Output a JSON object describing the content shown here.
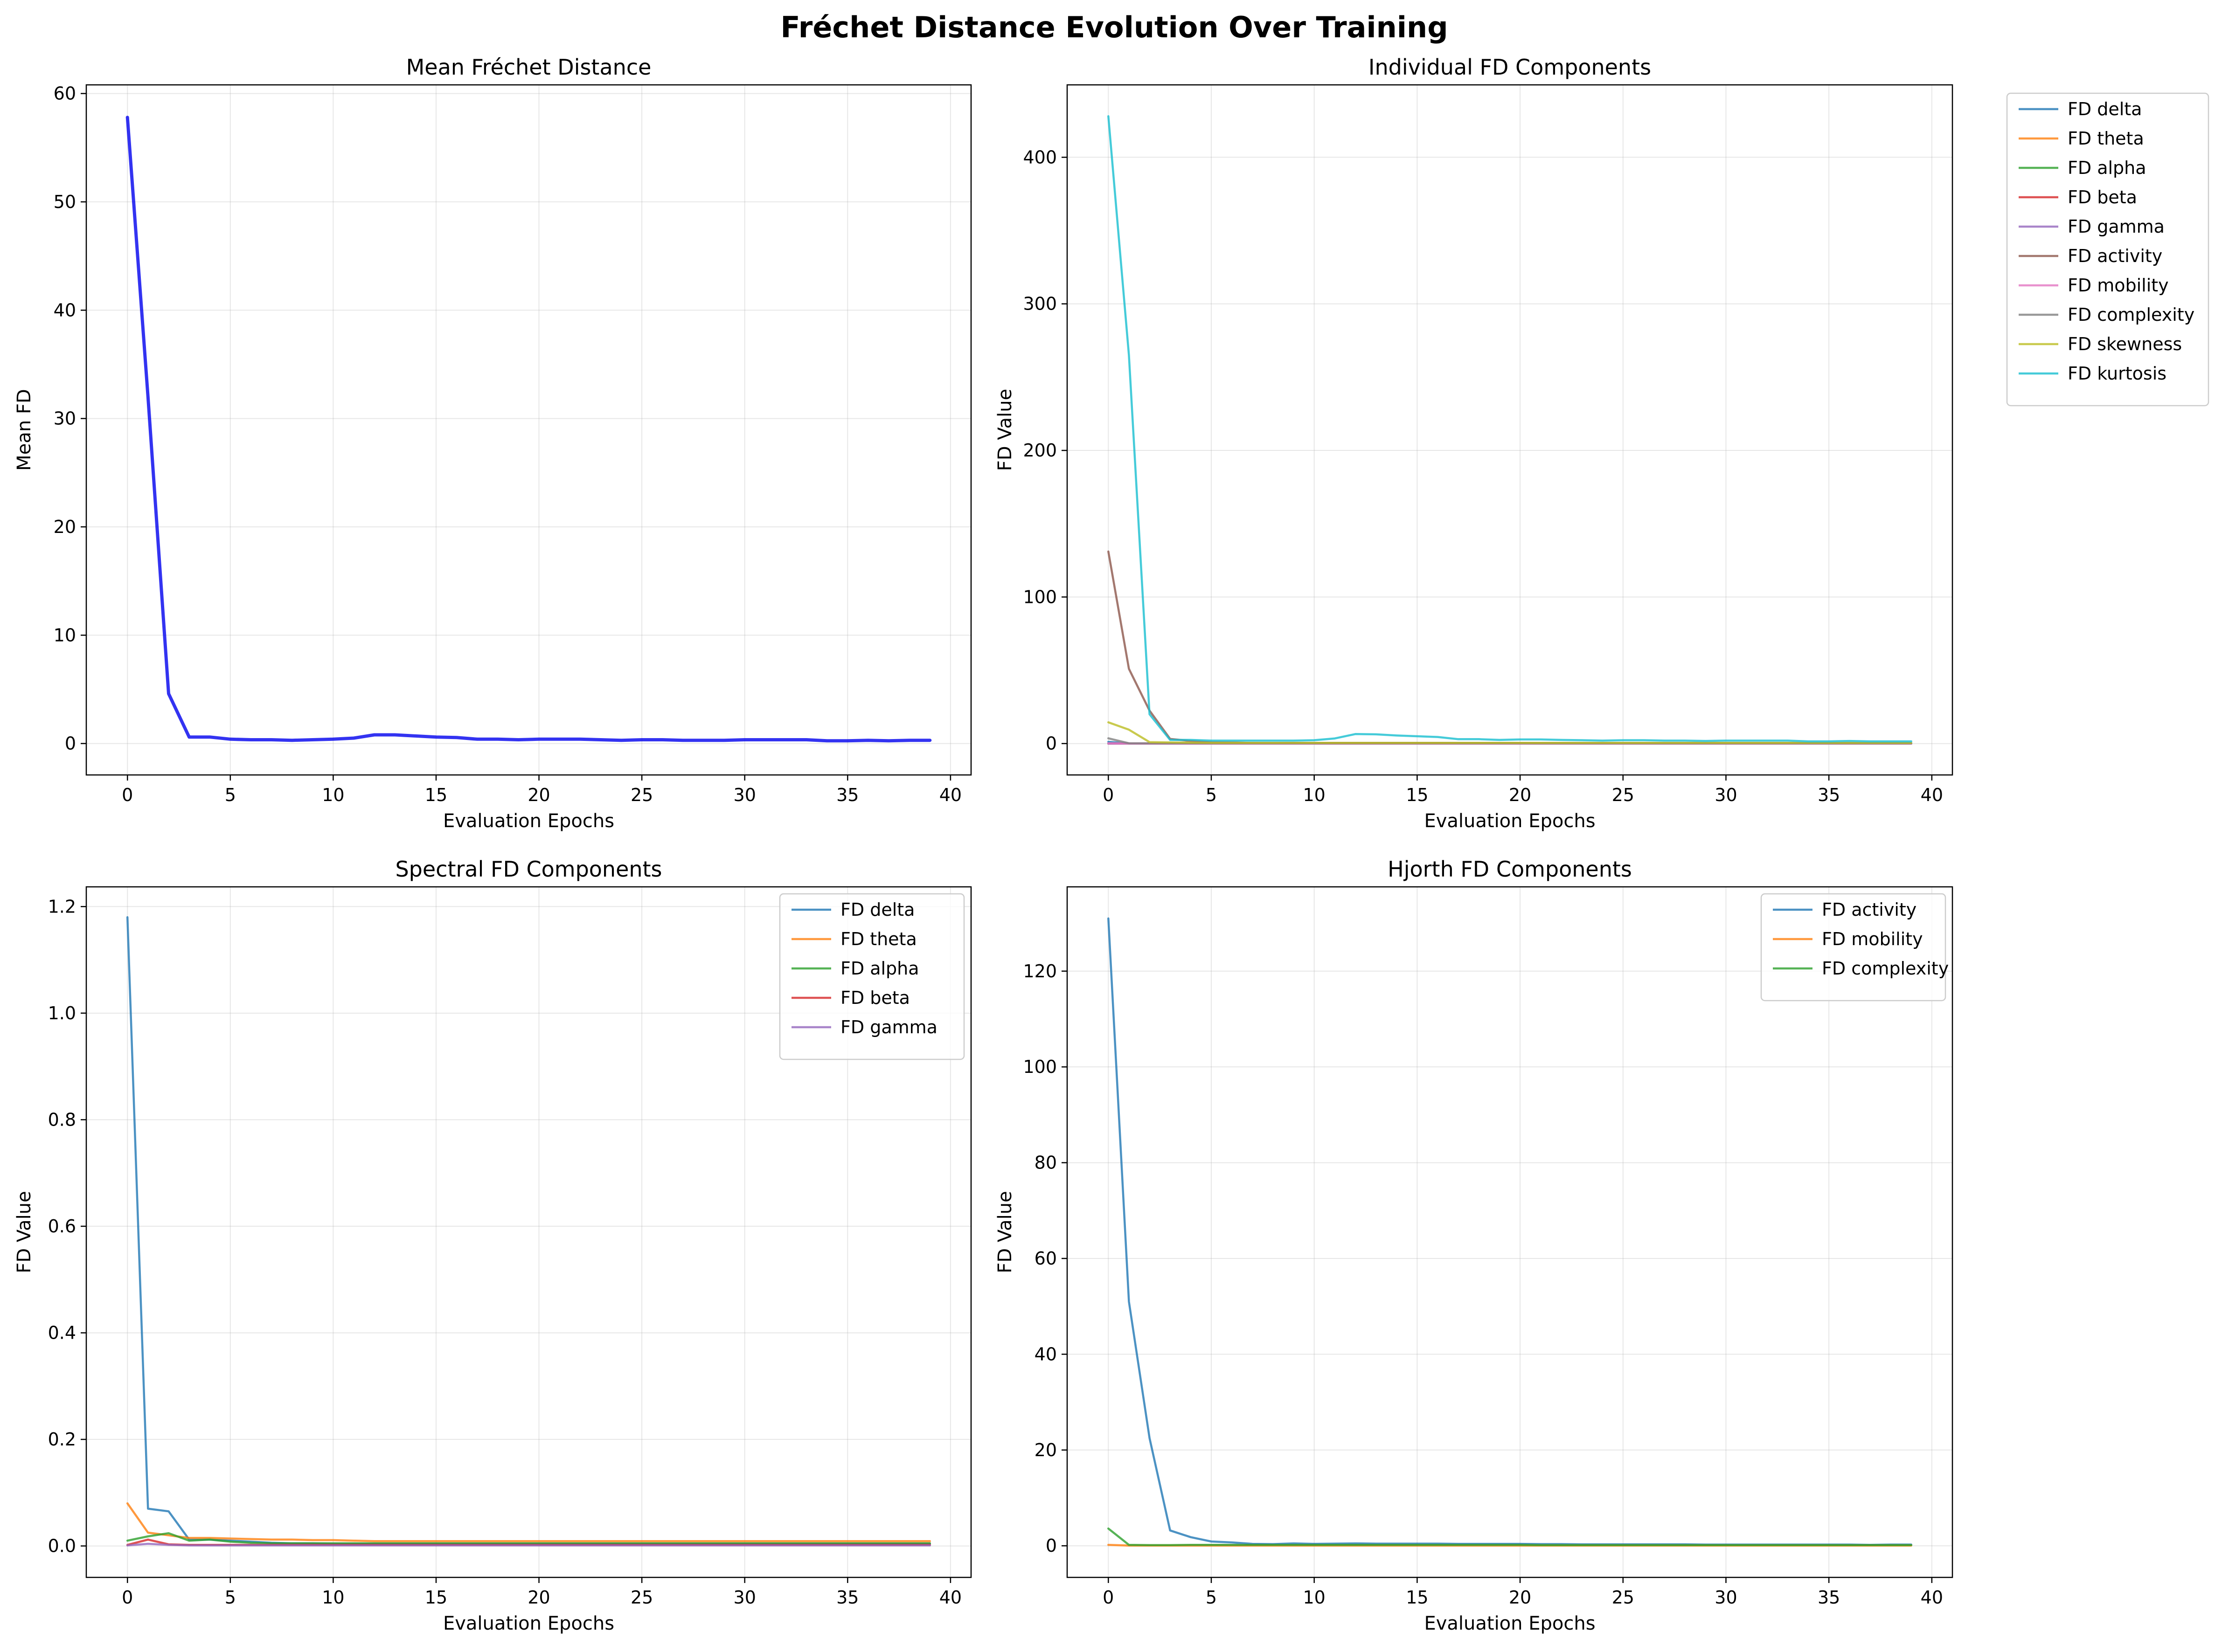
{
  "figure": {
    "title": "Fréchet Distance Evolution Over Training"
  },
  "chart_data": [
    {
      "type": "line",
      "title": "Mean Fréchet Distance",
      "xlabel": "Evaluation Epochs",
      "ylabel": "Mean FD",
      "xlim": [
        -2,
        41
      ],
      "ylim": [
        -2.9,
        60.8
      ],
      "xticks": [
        0,
        5,
        10,
        15,
        20,
        25,
        30,
        35,
        40
      ],
      "yticks": [
        0,
        10,
        20,
        30,
        40,
        50,
        60
      ],
      "grid": true,
      "legend": "none",
      "series": [
        {
          "color": "#0000ee",
          "width": 7,
          "opacity": 0.8,
          "values": [
            57.8,
            32.0,
            4.6,
            0.6,
            0.6,
            0.4,
            0.35,
            0.35,
            0.3,
            0.35,
            0.4,
            0.5,
            0.8,
            0.8,
            0.7,
            0.6,
            0.55,
            0.4,
            0.4,
            0.35,
            0.4,
            0.4,
            0.4,
            0.35,
            0.3,
            0.35,
            0.35,
            0.3,
            0.3,
            0.3,
            0.35,
            0.35,
            0.35,
            0.35,
            0.25,
            0.25,
            0.3,
            0.25,
            0.3,
            0.3
          ]
        }
      ]
    },
    {
      "type": "line",
      "title": "Individual FD Components",
      "xlabel": "Evaluation Epochs",
      "ylabel": "FD Value",
      "xlim": [
        -2,
        41
      ],
      "ylim": [
        -21.4,
        449.4
      ],
      "xticks": [
        0,
        5,
        10,
        15,
        20,
        25,
        30,
        35,
        40
      ],
      "yticks": [
        0,
        100,
        200,
        300,
        400
      ],
      "grid": true,
      "legend": "outside-upper-right",
      "series": [
        {
          "name": "FD delta",
          "color": "#1f77b4",
          "width": 4.5,
          "opacity": 0.8,
          "values": [
            1.18,
            0.07,
            0.065,
            0.012,
            0.012,
            0.01,
            0.008,
            0.006,
            0.005,
            0.005,
            0.004,
            0.004,
            0.004,
            0.004,
            0.004,
            0.004,
            0.004,
            0.004,
            0.004,
            0.004,
            0.004,
            0.004,
            0.004,
            0.004,
            0.004,
            0.004,
            0.004,
            0.004,
            0.004,
            0.004,
            0.004,
            0.004,
            0.004,
            0.004,
            0.004,
            0.004,
            0.004,
            0.004,
            0.004,
            0.004
          ]
        },
        {
          "name": "FD theta",
          "color": "#ff7f0e",
          "width": 4.5,
          "opacity": 0.8,
          "values": [
            0.08,
            0.025,
            0.02,
            0.015,
            0.015,
            0.014,
            0.013,
            0.012,
            0.012,
            0.011,
            0.011,
            0.01,
            0.009,
            0.009,
            0.009,
            0.009,
            0.009,
            0.009,
            0.009,
            0.009,
            0.009,
            0.009,
            0.009,
            0.009,
            0.009,
            0.009,
            0.009,
            0.009,
            0.009,
            0.009,
            0.009,
            0.009,
            0.009,
            0.009,
            0.009,
            0.009,
            0.009,
            0.009,
            0.009,
            0.009
          ]
        },
        {
          "name": "FD alpha",
          "color": "#2ca02c",
          "width": 4.5,
          "opacity": 0.8,
          "values": [
            0.01,
            0.018,
            0.024,
            0.01,
            0.012,
            0.008,
            0.006,
            0.005,
            0.005,
            0.005,
            0.005,
            0.005,
            0.005,
            0.005,
            0.005,
            0.005,
            0.005,
            0.005,
            0.005,
            0.005,
            0.005,
            0.005,
            0.005,
            0.005,
            0.005,
            0.005,
            0.005,
            0.005,
            0.005,
            0.005,
            0.005,
            0.005,
            0.005,
            0.005,
            0.005,
            0.005,
            0.005,
            0.005,
            0.005,
            0.005
          ]
        },
        {
          "name": "FD beta",
          "color": "#d62728",
          "width": 4.5,
          "opacity": 0.8,
          "values": [
            0.002,
            0.012,
            0.003,
            0.002,
            0.002,
            0.002,
            0.002,
            0.002,
            0.002,
            0.002,
            0.002,
            0.002,
            0.002,
            0.002,
            0.002,
            0.002,
            0.002,
            0.002,
            0.002,
            0.002,
            0.002,
            0.002,
            0.002,
            0.002,
            0.002,
            0.002,
            0.002,
            0.002,
            0.002,
            0.002,
            0.002,
            0.002,
            0.002,
            0.002,
            0.002,
            0.002,
            0.002,
            0.002,
            0.002,
            0.002
          ]
        },
        {
          "name": "FD gamma",
          "color": "#9467bd",
          "width": 4.5,
          "opacity": 0.8,
          "values": [
            0.001,
            0.004,
            0.002,
            0.001,
            0.001,
            0.001,
            0.001,
            0.001,
            0.001,
            0.001,
            0.001,
            0.001,
            0.001,
            0.001,
            0.001,
            0.001,
            0.001,
            0.001,
            0.001,
            0.001,
            0.001,
            0.001,
            0.001,
            0.001,
            0.001,
            0.001,
            0.001,
            0.001,
            0.001,
            0.001,
            0.001,
            0.001,
            0.001,
            0.001,
            0.001,
            0.001,
            0.001,
            0.001,
            0.001,
            0.001
          ]
        },
        {
          "name": "FD activity",
          "color": "#8c564b",
          "width": 4.5,
          "opacity": 0.8,
          "values": [
            131,
            51,
            22.5,
            3.2,
            1.8,
            0.9,
            0.7,
            0.4,
            0.35,
            0.5,
            0.4,
            0.45,
            0.5,
            0.45,
            0.45,
            0.45,
            0.45,
            0.4,
            0.4,
            0.4,
            0.4,
            0.35,
            0.35,
            0.3,
            0.3,
            0.3,
            0.3,
            0.3,
            0.3,
            0.25,
            0.25,
            0.25,
            0.25,
            0.25,
            0.25,
            0.25,
            0.25,
            0.2,
            0.25,
            0.25
          ]
        },
        {
          "name": "FD mobility",
          "color": "#e377c2",
          "width": 4.5,
          "opacity": 0.8,
          "values": [
            0.2,
            0.05,
            0.05,
            0.05,
            0.05,
            0.05,
            0.05,
            0.05,
            0.05,
            0.05,
            0.05,
            0.05,
            0.05,
            0.05,
            0.05,
            0.05,
            0.05,
            0.05,
            0.05,
            0.05,
            0.05,
            0.05,
            0.05,
            0.05,
            0.05,
            0.05,
            0.05,
            0.05,
            0.05,
            0.05,
            0.05,
            0.05,
            0.05,
            0.05,
            0.05,
            0.05,
            0.05,
            0.05,
            0.05,
            0.05
          ]
        },
        {
          "name": "FD complexity",
          "color": "#7f7f7f",
          "width": 4.5,
          "opacity": 0.8,
          "values": [
            3.6,
            0.2,
            0.15,
            0.15,
            0.2,
            0.2,
            0.2,
            0.2,
            0.2,
            0.2,
            0.2,
            0.2,
            0.2,
            0.2,
            0.2,
            0.2,
            0.2,
            0.2,
            0.2,
            0.2,
            0.2,
            0.15,
            0.15,
            0.15,
            0.15,
            0.15,
            0.15,
            0.15,
            0.15,
            0.15,
            0.15,
            0.15,
            0.15,
            0.15,
            0.15,
            0.15,
            0.15,
            0.15,
            0.15,
            0.15
          ]
        },
        {
          "name": "FD skewness",
          "color": "#bcbd22",
          "width": 4.5,
          "opacity": 0.8,
          "values": [
            14.5,
            9.5,
            1.0,
            0.8,
            0.6,
            0.5,
            0.5,
            0.5,
            0.5,
            0.5,
            0.5,
            0.5,
            0.5,
            0.5,
            0.5,
            0.5,
            0.5,
            0.5,
            0.5,
            0.5,
            0.5,
            0.5,
            0.5,
            0.5,
            0.5,
            0.5,
            0.5,
            0.5,
            0.5,
            0.5,
            0.5,
            0.5,
            0.5,
            0.5,
            0.5,
            0.5,
            0.5,
            0.5,
            0.5,
            0.5
          ]
        },
        {
          "name": "FD kurtosis",
          "color": "#17becf",
          "width": 4.5,
          "opacity": 0.8,
          "values": [
            428,
            265,
            20,
            2.5,
            2.5,
            2.0,
            2.0,
            2.0,
            2.0,
            2.0,
            2.3,
            3.5,
            6.5,
            6.3,
            5.5,
            5.0,
            4.5,
            3.0,
            3.0,
            2.5,
            2.8,
            2.8,
            2.5,
            2.3,
            2.0,
            2.3,
            2.3,
            2.0,
            2.0,
            1.8,
            2.0,
            2.0,
            2.0,
            2.0,
            1.5,
            1.5,
            1.8,
            1.5,
            1.5,
            1.5
          ]
        }
      ]
    },
    {
      "type": "line",
      "title": "Spectral FD Components",
      "xlabel": "Evaluation Epochs",
      "ylabel": "FD Value",
      "xlim": [
        -2,
        41
      ],
      "ylim": [
        -0.059,
        1.237
      ],
      "xticks": [
        0,
        5,
        10,
        15,
        20,
        25,
        30,
        35,
        40
      ],
      "yticks": [
        0.0,
        0.2,
        0.4,
        0.6,
        0.8,
        1.0,
        1.2
      ],
      "ytick_decimals": 1,
      "grid": true,
      "legend": "upper-right",
      "series": [
        {
          "name": "FD delta",
          "color": "#1f77b4",
          "width": 4.5,
          "opacity": 0.8,
          "values": [
            1.18,
            0.07,
            0.065,
            0.012,
            0.012,
            0.01,
            0.008,
            0.006,
            0.005,
            0.005,
            0.004,
            0.004,
            0.004,
            0.004,
            0.004,
            0.004,
            0.004,
            0.004,
            0.004,
            0.004,
            0.004,
            0.004,
            0.004,
            0.004,
            0.004,
            0.004,
            0.004,
            0.004,
            0.004,
            0.004,
            0.004,
            0.004,
            0.004,
            0.004,
            0.004,
            0.004,
            0.004,
            0.004,
            0.004,
            0.004
          ]
        },
        {
          "name": "FD theta",
          "color": "#ff7f0e",
          "width": 4.5,
          "opacity": 0.8,
          "values": [
            0.08,
            0.025,
            0.02,
            0.015,
            0.015,
            0.014,
            0.013,
            0.012,
            0.012,
            0.011,
            0.011,
            0.01,
            0.009,
            0.009,
            0.009,
            0.009,
            0.009,
            0.009,
            0.009,
            0.009,
            0.009,
            0.009,
            0.009,
            0.009,
            0.009,
            0.009,
            0.009,
            0.009,
            0.009,
            0.009,
            0.009,
            0.009,
            0.009,
            0.009,
            0.009,
            0.009,
            0.009,
            0.009,
            0.009,
            0.009
          ]
        },
        {
          "name": "FD alpha",
          "color": "#2ca02c",
          "width": 4.5,
          "opacity": 0.8,
          "values": [
            0.01,
            0.018,
            0.024,
            0.01,
            0.012,
            0.008,
            0.006,
            0.005,
            0.005,
            0.005,
            0.005,
            0.005,
            0.005,
            0.005,
            0.005,
            0.005,
            0.005,
            0.005,
            0.005,
            0.005,
            0.005,
            0.005,
            0.005,
            0.005,
            0.005,
            0.005,
            0.005,
            0.005,
            0.005,
            0.005,
            0.005,
            0.005,
            0.005,
            0.005,
            0.005,
            0.005,
            0.005,
            0.005,
            0.005,
            0.005
          ]
        },
        {
          "name": "FD beta",
          "color": "#d62728",
          "width": 4.5,
          "opacity": 0.8,
          "values": [
            0.002,
            0.012,
            0.003,
            0.002,
            0.002,
            0.002,
            0.002,
            0.002,
            0.002,
            0.002,
            0.002,
            0.002,
            0.002,
            0.002,
            0.002,
            0.002,
            0.002,
            0.002,
            0.002,
            0.002,
            0.002,
            0.002,
            0.002,
            0.002,
            0.002,
            0.002,
            0.002,
            0.002,
            0.002,
            0.002,
            0.002,
            0.002,
            0.002,
            0.002,
            0.002,
            0.002,
            0.002,
            0.002,
            0.002,
            0.002
          ]
        },
        {
          "name": "FD gamma",
          "color": "#9467bd",
          "width": 4.5,
          "opacity": 0.8,
          "values": [
            0.001,
            0.004,
            0.002,
            0.001,
            0.001,
            0.001,
            0.001,
            0.001,
            0.001,
            0.001,
            0.001,
            0.001,
            0.001,
            0.001,
            0.001,
            0.001,
            0.001,
            0.001,
            0.001,
            0.001,
            0.001,
            0.001,
            0.001,
            0.001,
            0.001,
            0.001,
            0.001,
            0.001,
            0.001,
            0.001,
            0.001,
            0.001,
            0.001,
            0.001,
            0.001,
            0.001,
            0.001,
            0.001,
            0.001,
            0.001
          ]
        }
      ]
    },
    {
      "type": "line",
      "title": "Hjorth FD Components",
      "xlabel": "Evaluation Epochs",
      "ylabel": "FD Value",
      "xlim": [
        -2,
        41
      ],
      "ylim": [
        -6.6,
        137.6
      ],
      "xticks": [
        0,
        5,
        10,
        15,
        20,
        25,
        30,
        35,
        40
      ],
      "yticks": [
        0,
        20,
        40,
        60,
        80,
        100,
        120
      ],
      "grid": true,
      "legend": "upper-right",
      "series": [
        {
          "name": "FD activity",
          "color": "#1f77b4",
          "width": 4.5,
          "opacity": 0.8,
          "values": [
            131,
            51,
            22.5,
            3.2,
            1.8,
            0.9,
            0.7,
            0.4,
            0.35,
            0.5,
            0.4,
            0.45,
            0.5,
            0.45,
            0.45,
            0.45,
            0.45,
            0.4,
            0.4,
            0.4,
            0.4,
            0.35,
            0.35,
            0.3,
            0.3,
            0.3,
            0.3,
            0.3,
            0.3,
            0.25,
            0.25,
            0.25,
            0.25,
            0.25,
            0.25,
            0.25,
            0.25,
            0.2,
            0.25,
            0.25
          ]
        },
        {
          "name": "FD mobility",
          "color": "#ff7f0e",
          "width": 4.5,
          "opacity": 0.8,
          "values": [
            0.2,
            0.05,
            0.05,
            0.05,
            0.05,
            0.05,
            0.05,
            0.05,
            0.05,
            0.05,
            0.05,
            0.05,
            0.05,
            0.05,
            0.05,
            0.05,
            0.05,
            0.05,
            0.05,
            0.05,
            0.05,
            0.05,
            0.05,
            0.05,
            0.05,
            0.05,
            0.05,
            0.05,
            0.05,
            0.05,
            0.05,
            0.05,
            0.05,
            0.05,
            0.05,
            0.05,
            0.05,
            0.05,
            0.05,
            0.05
          ]
        },
        {
          "name": "FD complexity",
          "color": "#2ca02c",
          "width": 4.5,
          "opacity": 0.8,
          "values": [
            3.6,
            0.2,
            0.15,
            0.15,
            0.2,
            0.2,
            0.2,
            0.2,
            0.2,
            0.2,
            0.2,
            0.2,
            0.2,
            0.2,
            0.2,
            0.2,
            0.2,
            0.2,
            0.2,
            0.2,
            0.2,
            0.15,
            0.15,
            0.15,
            0.15,
            0.15,
            0.15,
            0.15,
            0.15,
            0.15,
            0.15,
            0.15,
            0.15,
            0.15,
            0.15,
            0.15,
            0.15,
            0.15,
            0.15,
            0.15
          ]
        }
      ]
    }
  ]
}
